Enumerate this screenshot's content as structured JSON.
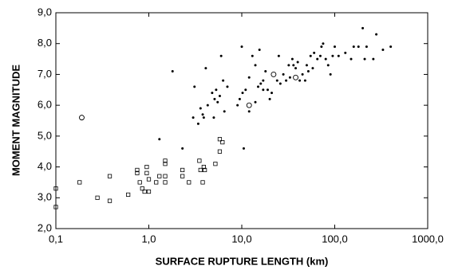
{
  "chart_data": {
    "type": "scatter",
    "xlabel": "SURFACE RUPTURE LENGTH (km)",
    "ylabel": "MOMENT MAGNITUDE",
    "xscale": "log",
    "xlim": [
      0.1,
      1000
    ],
    "xticks": [
      {
        "value": 0.1,
        "label": "0,1"
      },
      {
        "value": 1,
        "label": "1,0"
      },
      {
        "value": 10,
        "label": "10,0"
      },
      {
        "value": 100,
        "label": "100,0"
      },
      {
        "value": 1000,
        "label": "1000,0"
      }
    ],
    "ylim": [
      2,
      9
    ],
    "yticks": [
      {
        "value": 2,
        "label": "2,0"
      },
      {
        "value": 3,
        "label": "3,0"
      },
      {
        "value": 4,
        "label": "4,0"
      },
      {
        "value": 5,
        "label": "5,0"
      },
      {
        "value": 6,
        "label": "6,0"
      },
      {
        "value": 7,
        "label": "7,0"
      },
      {
        "value": 8,
        "label": "8,0"
      },
      {
        "value": 9,
        "label": "9,0"
      }
    ],
    "series": [
      {
        "marker": "dot",
        "color": "#000000",
        "x": [
          1.3,
          2.3,
          1.8,
          3.0,
          3.1,
          3.4,
          3.6,
          3.8,
          3.9,
          4.1,
          4.3,
          4.8,
          5.0,
          5.1,
          5.3,
          5.5,
          5.8,
          6.0,
          6.3,
          6.5,
          7.0,
          9.0,
          9.5,
          10,
          10.2,
          10.5,
          11,
          12,
          12,
          13,
          14,
          14,
          15,
          15.5,
          16,
          17,
          17,
          18,
          19,
          20,
          21,
          24,
          25,
          26,
          28,
          30,
          32,
          33,
          35,
          36,
          38,
          40,
          42,
          45,
          48,
          50,
          52,
          55,
          58,
          60,
          65,
          70,
          72,
          75,
          80,
          85,
          90,
          95,
          100,
          110,
          130,
          150,
          160,
          180,
          200,
          210,
          220,
          260,
          280,
          330,
          400
        ],
        "values": [
          4.9,
          4.6,
          7.1,
          5.6,
          6.6,
          5.4,
          5.9,
          5.7,
          5.6,
          7.2,
          6.0,
          6.4,
          5.6,
          6.2,
          6.5,
          6.1,
          6.3,
          7.6,
          6.8,
          5.8,
          6.6,
          6.0,
          6.2,
          7.9,
          6.4,
          4.6,
          6.5,
          5.8,
          6.9,
          7.6,
          7.3,
          6.1,
          6.6,
          7.8,
          6.7,
          6.5,
          6.8,
          7.1,
          6.5,
          6.2,
          6.4,
          6.8,
          7.6,
          6.7,
          7.0,
          6.8,
          7.3,
          6.9,
          7.5,
          7.3,
          7.2,
          7.4,
          6.8,
          7.0,
          6.8,
          7.3,
          7.1,
          7.6,
          7.2,
          7.7,
          7.5,
          7.6,
          7.9,
          8.0,
          7.5,
          7.3,
          7.0,
          7.6,
          7.9,
          7.6,
          7.7,
          7.5,
          7.9,
          7.9,
          8.5,
          7.5,
          7.9,
          7.5,
          8.3,
          7.8,
          7.9
        ]
      },
      {
        "marker": "square",
        "color": "#000000",
        "x": [
          0.1,
          0.1,
          0.18,
          0.28,
          0.38,
          0.38,
          0.6,
          0.75,
          0.75,
          0.8,
          0.85,
          0.9,
          0.95,
          0.95,
          1.0,
          1.0,
          1.2,
          1.3,
          1.5,
          1.5,
          1.5,
          1.5,
          2.3,
          2.3,
          2.7,
          3.5,
          3.6,
          3.8,
          3.9,
          4.0,
          5.2,
          5.8,
          5.8,
          6.2
        ],
        "values": [
          3.3,
          2.7,
          3.5,
          3.0,
          3.7,
          2.9,
          3.1,
          3.9,
          3.8,
          3.5,
          3.3,
          3.2,
          4.0,
          3.8,
          3.6,
          3.2,
          3.5,
          3.7,
          4.2,
          4.1,
          3.7,
          3.5,
          3.9,
          3.7,
          3.5,
          4.2,
          3.9,
          3.5,
          4.0,
          3.9,
          4.1,
          4.5,
          4.9,
          4.8
        ]
      },
      {
        "marker": "circle",
        "color": "#000000",
        "x": [
          0.19,
          12,
          22,
          38
        ],
        "values": [
          5.6,
          6.0,
          7.0,
          6.9
        ]
      }
    ]
  }
}
